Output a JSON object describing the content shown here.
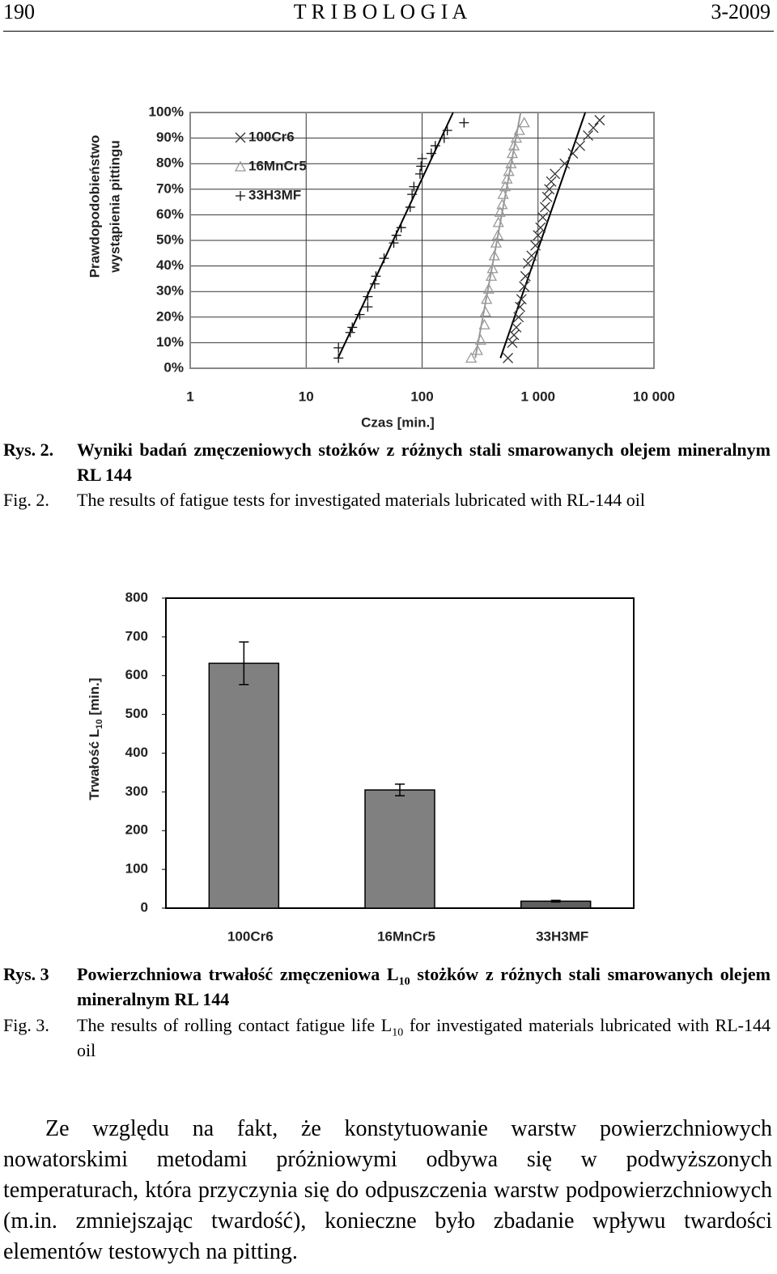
{
  "header": {
    "page": "190",
    "journal": "T R I B O L O G I A",
    "issue": "3-2009"
  },
  "chart_data": [
    {
      "type": "scatter",
      "xlabel": "Czas [min.]",
      "ylabel": [
        "Prawdopodobieństwo",
        "wystąpienia pittingu"
      ],
      "xscale": "log",
      "xlim": [
        1,
        10000
      ],
      "xticks": [
        1,
        10,
        100,
        {
          "value": 1000,
          "label": "1 000"
        },
        {
          "value": 10000,
          "label": "10 000"
        }
      ],
      "ylim": [
        0,
        100
      ],
      "yticks": [
        {
          "value": 0,
          "label": "0%"
        },
        {
          "value": 10,
          "label": "10%"
        },
        {
          "value": 20,
          "label": "20%"
        },
        {
          "value": 30,
          "label": "30%"
        },
        {
          "value": 40,
          "label": "40%"
        },
        {
          "value": 50,
          "label": "50%"
        },
        {
          "value": 60,
          "label": "60%"
        },
        {
          "value": 70,
          "label": "70%"
        },
        {
          "value": 80,
          "label": "80%"
        },
        {
          "value": 90,
          "label": "90%"
        },
        {
          "value": 100,
          "label": "100%"
        }
      ],
      "grid": true,
      "legend": "upper left",
      "series": [
        {
          "name": "100Cr6",
          "marker": "x",
          "color": "#333333",
          "x": [
            550,
            600,
            620,
            650,
            680,
            700,
            720,
            760,
            780,
            820,
            880,
            950,
            1000,
            1050,
            1100,
            1150,
            1200,
            1250,
            1300,
            1400,
            1700,
            2000,
            2300,
            2700,
            3000,
            3400
          ],
          "values": [
            4,
            10,
            13,
            16,
            20,
            24,
            27,
            32,
            36,
            41,
            44,
            48,
            52,
            55,
            59,
            63,
            67,
            70,
            73,
            76,
            80,
            84,
            87,
            91,
            94,
            97
          ]
        },
        {
          "name": "16MnCr5",
          "marker": "triangle",
          "color": "#999999",
          "x": [
            265,
            300,
            320,
            345,
            352,
            360,
            375,
            395,
            405,
            420,
            435,
            450,
            455,
            470,
            490,
            500,
            520,
            540,
            560,
            585,
            600,
            620,
            650,
            690,
            760
          ],
          "values": [
            4,
            7,
            11,
            17,
            22,
            27,
            31,
            36,
            39,
            44,
            49,
            52,
            57,
            61,
            64,
            68,
            71,
            74,
            77,
            80,
            84,
            87,
            90,
            93,
            96
          ]
        },
        {
          "name": "33H3MF",
          "marker": "plus",
          "color": "#111111",
          "x": [
            19,
            19,
            24,
            25,
            29,
            34,
            34,
            39,
            40,
            47,
            57,
            60,
            66,
            79,
            82,
            85,
            96,
            98,
            100,
            120,
            130,
            155,
            165,
            230
          ],
          "values": [
            4,
            8,
            14,
            16,
            21,
            24,
            28,
            33,
            36,
            43,
            49,
            52,
            55,
            63,
            68,
            71,
            76,
            79,
            82,
            84,
            87,
            90,
            93,
            96
          ]
        }
      ]
    },
    {
      "type": "bar",
      "ylabel": [
        "Trwałość L",
        "10",
        " [min.]"
      ],
      "categories": [
        "100Cr6",
        "16MnCr5",
        "33H3MF"
      ],
      "values": [
        632,
        305,
        18
      ],
      "errors": [
        55,
        15,
        2
      ],
      "colors": [
        "#808080",
        "#808080",
        "#5f5f5f"
      ],
      "ylim": [
        0,
        800
      ],
      "yticks": [
        0,
        100,
        200,
        300,
        400,
        500,
        600,
        700,
        800
      ]
    }
  ],
  "captions": [
    {
      "pl_label": "Rys. 2.",
      "pl_text": [
        "Wyniki badań zmęczeniowych stożków z różnych stali smarowanych olejem mineralnym RL 144"
      ],
      "en_label": "Fig. 2.",
      "en_text": [
        "The results of fatigue tests for investigated materials lubricated with RL-144 oil"
      ]
    },
    {
      "pl_label": "Rys. 3",
      "pl_text": [
        "Powierzchniowa trwałość zmęczeniowa L",
        "10",
        " stożków z różnych stali smarowanych olejem mineralnym RL 144"
      ],
      "en_label": "Fig. 3.",
      "en_text": [
        "The results of rolling contact fatigue life L",
        "10",
        " for investigated materials lubricated with RL-144 oil"
      ]
    }
  ],
  "body": "Ze względu na fakt, że konstytuowanie warstw powierzchniowych nowatorskimi metodami próżniowymi odbywa się w podwyższonych temperaturach, która przyczynia się do odpuszczenia warstw podpowierzchniowych (m.in. zmniejszając twardość), konieczne było zbadanie wpływu twardości elementów testowych na pitting."
}
